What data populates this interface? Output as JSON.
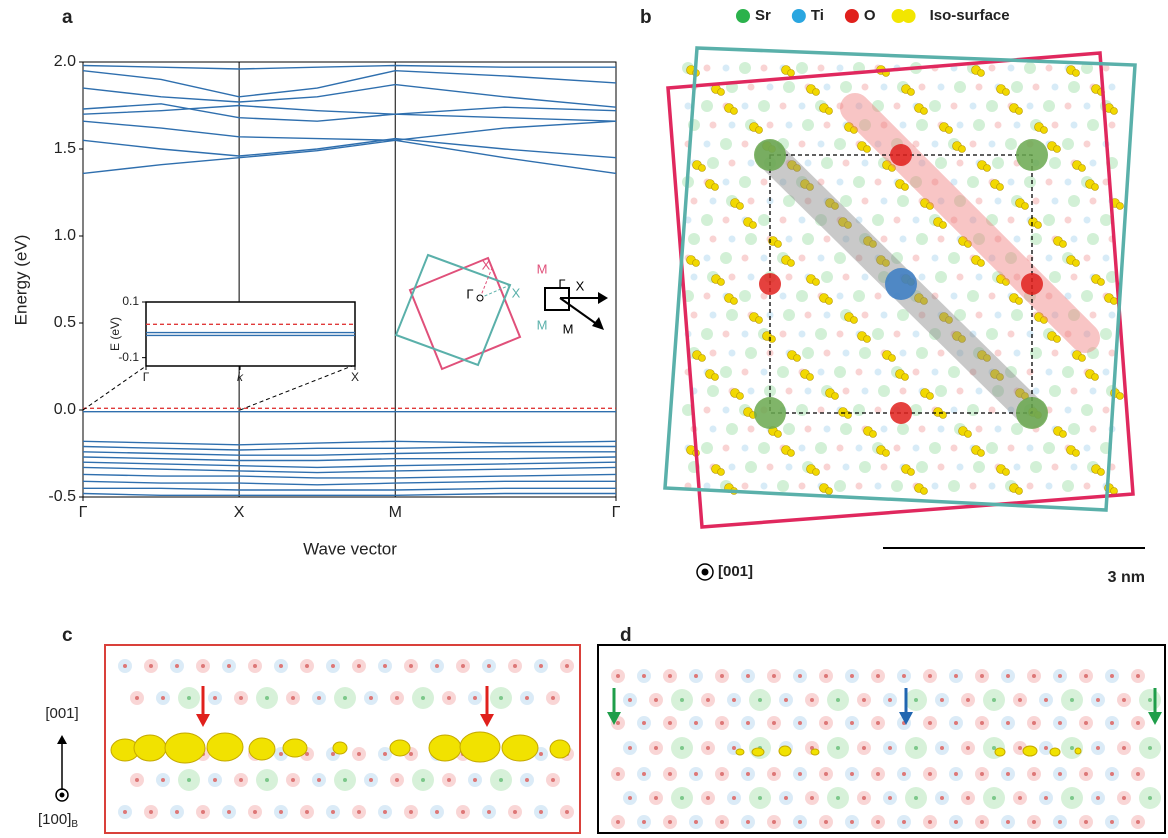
{
  "panel_labels": [
    "a",
    "b",
    "c",
    "d"
  ],
  "chart_data": [
    {
      "type": "line",
      "xlabel": "Wave vector",
      "ylabel": "Energy (eV)",
      "x": [
        0,
        0.5,
        1,
        1.5,
        2,
        2.7,
        3.414
      ],
      "xlim": [
        0,
        3.414
      ],
      "xticks": [
        {
          "value": 0,
          "label": "Γ"
        },
        {
          "value": 1,
          "label": "X"
        },
        {
          "value": 2,
          "label": "M"
        },
        {
          "value": 3.414,
          "label": "Γ"
        }
      ],
      "ylim": [
        -0.5,
        2.0
      ],
      "yticks": [
        {
          "value": -0.5,
          "label": "-0.5"
        },
        {
          "value": 0,
          "label": "0.0"
        },
        0.5,
        {
          "value": 1,
          "label": "1.0"
        },
        1.5,
        {
          "value": 2,
          "label": "2.0"
        }
      ],
      "series": [
        {
          "color": "#2f6fae",
          "values": [
            1.36,
            1.41,
            1.45,
            1.49,
            1.55,
            1.45,
            1.36
          ]
        },
        {
          "color": "#2f6fae",
          "values": [
            1.55,
            1.5,
            1.46,
            1.5,
            1.56,
            1.5,
            1.45
          ]
        },
        {
          "color": "#2f6fae",
          "values": [
            1.66,
            1.62,
            1.57,
            1.56,
            1.55,
            1.62,
            1.66
          ]
        },
        {
          "color": "#2f6fae",
          "values": [
            1.7,
            1.72,
            1.75,
            1.72,
            1.7,
            1.68,
            1.66
          ]
        },
        {
          "color": "#2f6fae",
          "values": [
            1.73,
            1.76,
            1.68,
            1.66,
            1.7,
            1.74,
            1.72
          ]
        },
        {
          "color": "#2f6fae",
          "values": [
            1.85,
            1.8,
            1.77,
            1.8,
            1.87,
            1.8,
            1.74
          ]
        },
        {
          "color": "#2f6fae",
          "values": [
            1.95,
            1.9,
            1.8,
            1.85,
            1.95,
            1.92,
            1.88
          ]
        },
        {
          "color": "#2f6fae",
          "values": [
            1.98,
            1.97,
            1.96,
            1.97,
            1.98,
            1.97,
            1.97
          ]
        },
        {
          "color": "#2f6fae",
          "values": [
            -0.01,
            -0.01,
            -0.01,
            -0.01,
            -0.01,
            -0.01,
            -0.01
          ]
        },
        {
          "color": "#e03a3a",
          "dashed": true,
          "values": [
            0.01,
            0.01,
            0.01,
            0.01,
            0.01,
            0.01,
            0.01
          ]
        },
        {
          "color": "#2f6fae",
          "values": [
            -0.18,
            -0.19,
            -0.2,
            -0.19,
            -0.18,
            -0.19,
            -0.18
          ]
        },
        {
          "color": "#2f6fae",
          "values": [
            -0.21,
            -0.22,
            -0.23,
            -0.22,
            -0.22,
            -0.21,
            -0.21
          ]
        },
        {
          "color": "#2f6fae",
          "values": [
            -0.24,
            -0.25,
            -0.26,
            -0.26,
            -0.25,
            -0.24,
            -0.24
          ]
        },
        {
          "color": "#2f6fae",
          "values": [
            -0.27,
            -0.28,
            -0.29,
            -0.29,
            -0.28,
            -0.28,
            -0.27
          ]
        },
        {
          "color": "#2f6fae",
          "values": [
            -0.3,
            -0.31,
            -0.32,
            -0.33,
            -0.32,
            -0.31,
            -0.3
          ]
        },
        {
          "color": "#2f6fae",
          "values": [
            -0.33,
            -0.34,
            -0.35,
            -0.36,
            -0.35,
            -0.34,
            -0.33
          ]
        },
        {
          "color": "#2f6fae",
          "values": [
            -0.37,
            -0.38,
            -0.38,
            -0.39,
            -0.39,
            -0.38,
            -0.37
          ]
        },
        {
          "color": "#2f6fae",
          "values": [
            -0.41,
            -0.42,
            -0.42,
            -0.43,
            -0.42,
            -0.41,
            -0.41
          ]
        },
        {
          "color": "#2f6fae",
          "values": [
            -0.45,
            -0.45,
            -0.46,
            -0.46,
            -0.46,
            -0.45,
            -0.45
          ]
        },
        {
          "color": "#2f6fae",
          "values": [
            -0.48,
            -0.49,
            -0.49,
            -0.49,
            -0.49,
            -0.48,
            -0.48
          ]
        }
      ]
    },
    {
      "type": "line",
      "ylabel": "E (eV)",
      "x": [
        0,
        1
      ],
      "xlim": [
        0,
        1
      ],
      "xticks": [
        {
          "value": 0,
          "label": "Γ"
        },
        {
          "value": 0.45,
          "label": "k"
        },
        {
          "value": 1,
          "label": "X"
        }
      ],
      "ylim": [
        -0.13,
        0.1
      ],
      "yticks": [
        -0.1,
        0.1
      ],
      "series": [
        {
          "color": "#e03a3a",
          "dashed": true,
          "values": [
            0.02,
            0.02
          ]
        },
        {
          "color": "#2f6fae",
          "values": [
            -0.01,
            -0.01
          ]
        },
        {
          "color": "#2f6fae",
          "values": [
            -0.02,
            -0.02
          ]
        }
      ]
    }
  ],
  "brillouin_zone": {
    "labels": [
      "Γ",
      "X",
      "M",
      "X",
      "M",
      "Γ",
      "X",
      "M"
    ]
  },
  "panel_b": {
    "legend": [
      {
        "name": "Sr",
        "color": "#2bb24c"
      },
      {
        "name": "Ti",
        "color": "#2aa6e0"
      },
      {
        "name": "O",
        "color": "#e0201c"
      },
      {
        "name": "Iso-surface",
        "color": "#f2e600"
      }
    ],
    "view_direction": "[001]",
    "scale_bar": "3 nm"
  },
  "panel_c": {
    "direction_up": "[001]",
    "direction_in": "[100]",
    "direction_in_sub": "B"
  }
}
